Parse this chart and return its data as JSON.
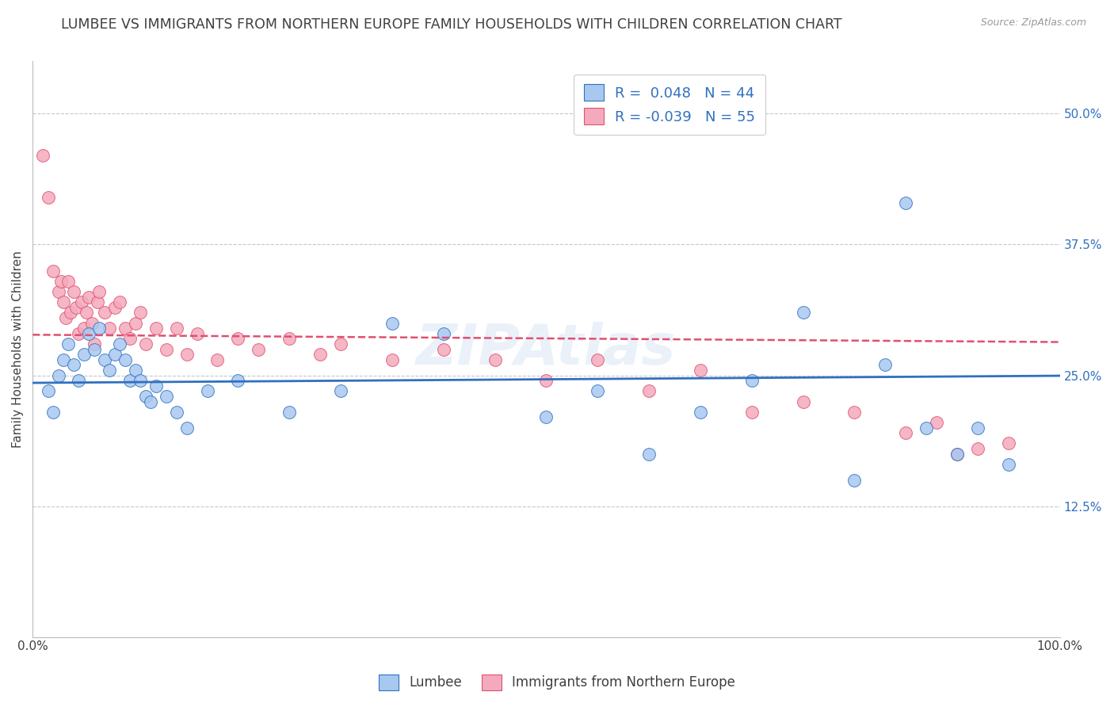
{
  "title": "LUMBEE VS IMMIGRANTS FROM NORTHERN EUROPE FAMILY HOUSEHOLDS WITH CHILDREN CORRELATION CHART",
  "source_text": "Source: ZipAtlas.com",
  "ylabel": "Family Households with Children",
  "ytick_labels": [
    "12.5%",
    "25.0%",
    "37.5%",
    "50.0%"
  ],
  "ytick_values": [
    0.125,
    0.25,
    0.375,
    0.5
  ],
  "legend_label1": "Lumbee",
  "legend_label2": "Immigrants from Northern Europe",
  "R1": 0.048,
  "N1": 44,
  "R2": -0.039,
  "N2": 55,
  "color1": "#A8C8F0",
  "color2": "#F4AABC",
  "line_color1": "#3070C0",
  "line_color2": "#E05070",
  "background_color": "#FFFFFF",
  "grid_color": "#C8C8C8",
  "title_color": "#404040",
  "source_color": "#999999",
  "lumbee_x": [
    1.5,
    2.0,
    2.5,
    3.0,
    3.5,
    4.0,
    4.5,
    5.0,
    5.5,
    6.0,
    6.5,
    7.0,
    7.5,
    8.0,
    8.5,
    9.0,
    9.5,
    10.0,
    10.5,
    11.0,
    11.5,
    12.0,
    13.0,
    14.0,
    15.0,
    17.0,
    20.0,
    25.0,
    30.0,
    35.0,
    40.0,
    50.0,
    55.0,
    60.0,
    65.0,
    70.0,
    75.0,
    80.0,
    83.0,
    85.0,
    87.0,
    90.0,
    92.0,
    95.0
  ],
  "lumbee_y": [
    0.235,
    0.215,
    0.25,
    0.265,
    0.28,
    0.26,
    0.245,
    0.27,
    0.29,
    0.275,
    0.295,
    0.265,
    0.255,
    0.27,
    0.28,
    0.265,
    0.245,
    0.255,
    0.245,
    0.23,
    0.225,
    0.24,
    0.23,
    0.215,
    0.2,
    0.235,
    0.245,
    0.215,
    0.235,
    0.3,
    0.29,
    0.21,
    0.235,
    0.175,
    0.215,
    0.245,
    0.31,
    0.15,
    0.26,
    0.415,
    0.2,
    0.175,
    0.2,
    0.165
  ],
  "immigrants_x": [
    1.0,
    1.5,
    2.0,
    2.5,
    2.8,
    3.0,
    3.2,
    3.5,
    3.7,
    4.0,
    4.2,
    4.5,
    4.8,
    5.0,
    5.2,
    5.5,
    5.8,
    6.0,
    6.3,
    6.5,
    7.0,
    7.5,
    8.0,
    8.5,
    9.0,
    9.5,
    10.0,
    10.5,
    11.0,
    12.0,
    13.0,
    14.0,
    15.0,
    16.0,
    18.0,
    20.0,
    22.0,
    25.0,
    28.0,
    30.0,
    35.0,
    40.0,
    45.0,
    50.0,
    55.0,
    60.0,
    65.0,
    70.0,
    75.0,
    80.0,
    85.0,
    88.0,
    90.0,
    92.0,
    95.0
  ],
  "immigrants_y": [
    0.46,
    0.42,
    0.35,
    0.33,
    0.34,
    0.32,
    0.305,
    0.34,
    0.31,
    0.33,
    0.315,
    0.29,
    0.32,
    0.295,
    0.31,
    0.325,
    0.3,
    0.28,
    0.32,
    0.33,
    0.31,
    0.295,
    0.315,
    0.32,
    0.295,
    0.285,
    0.3,
    0.31,
    0.28,
    0.295,
    0.275,
    0.295,
    0.27,
    0.29,
    0.265,
    0.285,
    0.275,
    0.285,
    0.27,
    0.28,
    0.265,
    0.275,
    0.265,
    0.245,
    0.265,
    0.235,
    0.255,
    0.215,
    0.225,
    0.215,
    0.195,
    0.205,
    0.175,
    0.18,
    0.185
  ],
  "xlim": [
    0.0,
    100.0
  ],
  "ylim": [
    0.0,
    0.55
  ],
  "watermark": "ZIPAtlas",
  "title_fontsize": 12.5,
  "axis_fontsize": 11,
  "tick_fontsize": 11
}
